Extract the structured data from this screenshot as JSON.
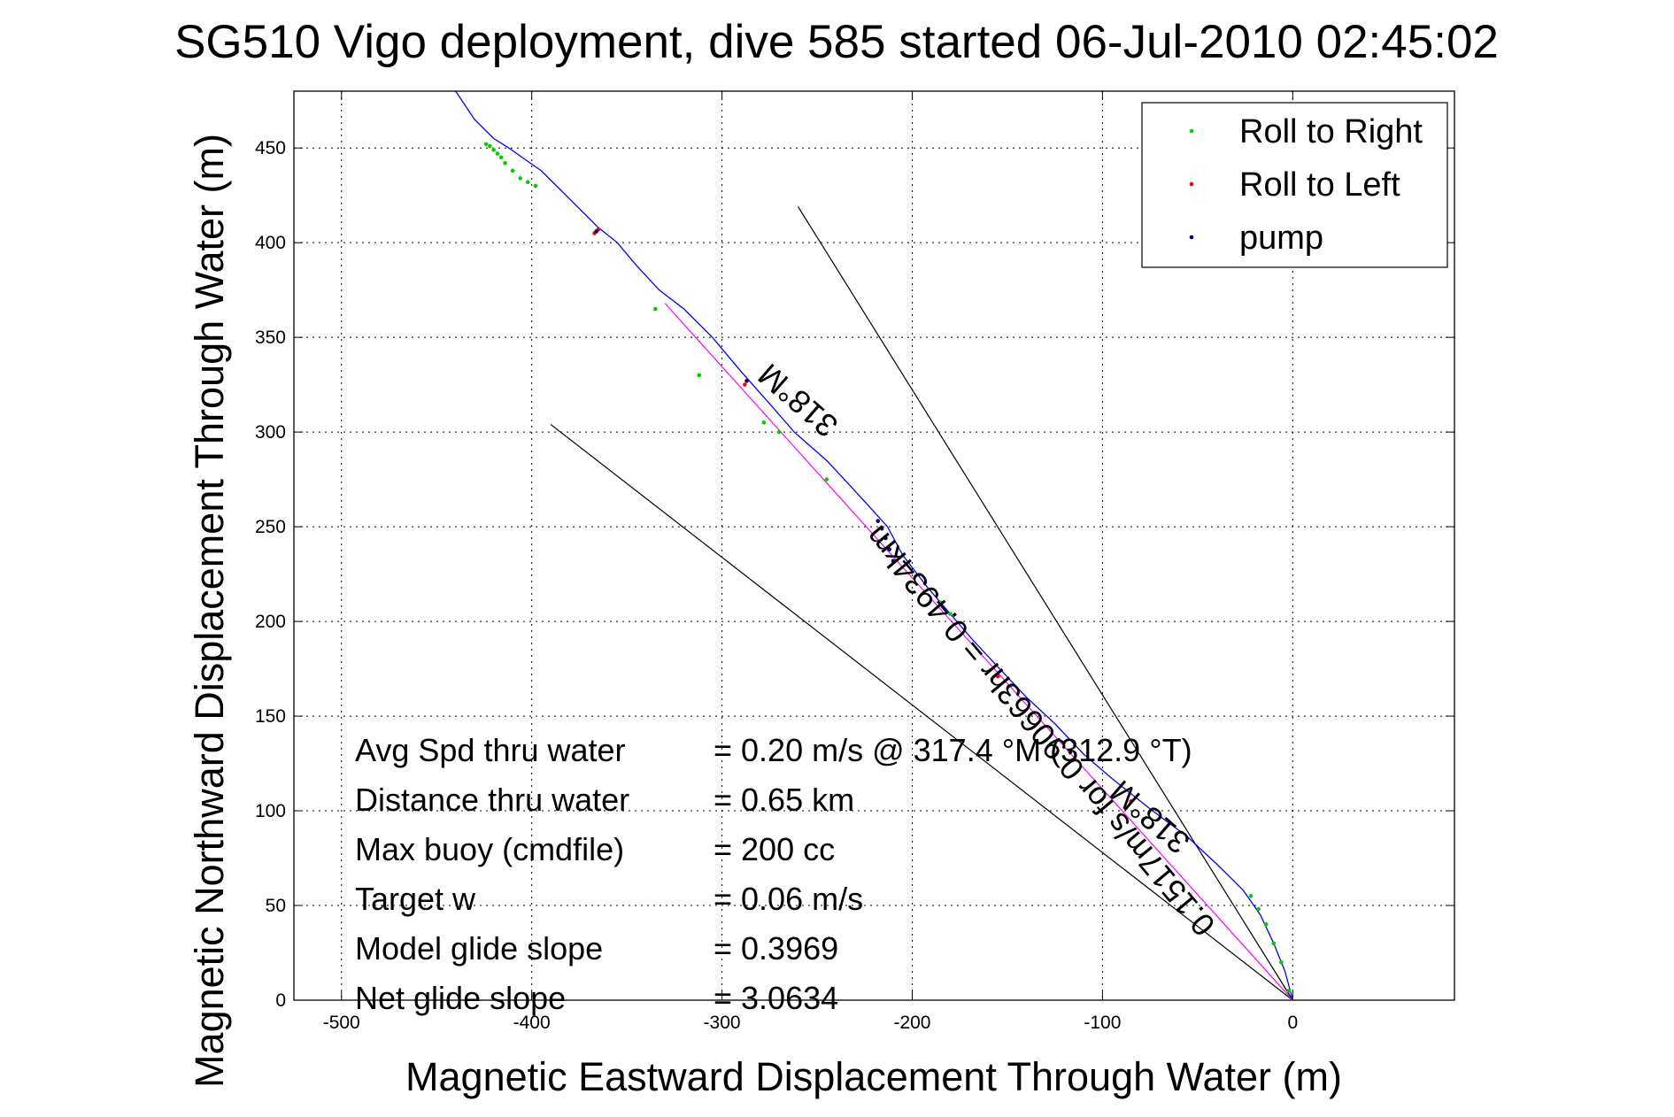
{
  "title": "SG510 Vigo deployment, dive 585 started 06-Jul-2010 02:45:02",
  "chart_data": {
    "type": "scatter",
    "title": "SG510 Vigo deployment, dive 585 started 06-Jul-2010 02:45:02",
    "xlabel": "Magnetic Eastward Displacement Through Water (m)",
    "ylabel": "Magnetic Northward Displacement Through Water (m)",
    "xlim": [
      -525,
      85
    ],
    "ylim": [
      0,
      480
    ],
    "x_ticks": [
      -500,
      -400,
      -300,
      -200,
      -100,
      0
    ],
    "y_ticks": [
      0,
      50,
      100,
      150,
      200,
      250,
      300,
      350,
      400,
      450
    ],
    "grid": true,
    "legend_position": "top-right",
    "legend": [
      "Roll to Right",
      "Roll to Left",
      "pump"
    ],
    "colors": {
      "track": "#0000ff",
      "roll_right": "#00cc00",
      "roll_left": "#ff0000",
      "pump": "#000080",
      "fit_line": "#ff00ff",
      "bounds": "#000000"
    },
    "track": {
      "name": "glider track",
      "x": [
        0,
        -4,
        -10,
        -17,
        -26,
        -38,
        -55,
        -75,
        -95,
        -110,
        -125,
        -140,
        -155,
        -168,
        -180,
        -192,
        -205,
        -213,
        -222,
        -232,
        -245,
        -262,
        -275,
        -290,
        -305,
        -320,
        -333,
        -345,
        -355,
        -365,
        -375,
        -385,
        -395,
        -405,
        -412,
        -420,
        -430,
        -440
      ],
      "y": [
        0,
        15,
        30,
        45,
        58,
        70,
        86,
        101,
        117,
        130,
        146,
        160,
        176,
        190,
        204,
        218,
        235,
        250,
        260,
        271,
        285,
        300,
        315,
        332,
        350,
        365,
        375,
        388,
        400,
        408,
        418,
        428,
        438,
        445,
        450,
        455,
        465,
        480
      ]
    },
    "roll_right": {
      "name": "Roll to Right",
      "x": [
        -2,
        -6,
        -10,
        -14,
        -18,
        -22,
        -180,
        -185,
        -245,
        -270,
        -278,
        -312,
        -335,
        -398,
        -402,
        -406,
        -410,
        -414,
        -416,
        -418,
        -420,
        -422,
        -424
      ],
      "y": [
        5,
        20,
        30,
        40,
        48,
        55,
        204,
        210,
        275,
        300,
        305,
        330,
        365,
        430,
        432,
        434,
        438,
        442,
        445,
        447,
        449,
        451,
        452
      ]
    },
    "roll_left": {
      "name": "Roll to Left",
      "x": [
        -85,
        -155,
        -288,
        -365,
        -367
      ],
      "y": [
        105,
        171,
        325,
        407,
        405
      ]
    },
    "pump": {
      "name": "pump",
      "x": [
        -210,
        -212,
        -214,
        -216,
        -218,
        -287,
        -366
      ],
      "y": [
        232,
        238,
        244,
        249,
        253,
        327,
        406
      ]
    },
    "fit_line": {
      "x": [
        0,
        -330
      ],
      "y": [
        0,
        368
      ]
    },
    "bound_lines": [
      {
        "x": [
          0,
          -260
        ],
        "y": [
          0,
          419
        ]
      },
      {
        "x": [
          0,
          -390
        ],
        "y": [
          0,
          304
        ]
      }
    ],
    "annotations": [
      {
        "text": "318°M",
        "x": -238,
        "y": 305,
        "angle": 41
      },
      {
        "text": "0.1517m/s for 0.90663hr = 0.4934km",
        "x": -40,
        "y": 40,
        "angle": 50
      },
      {
        "text": "318°M",
        "x": -53,
        "y": 85,
        "angle": 41
      }
    ],
    "stats": [
      {
        "label": "Avg Spd thru water",
        "value": "=  0.20 m/s @ 317.4 °M (312.9 °T)"
      },
      {
        "label": "Distance thru water",
        "value": "=  0.65 km"
      },
      {
        "label": "Max buoy (cmdfile)",
        "value": "= 200 cc"
      },
      {
        "label": "Target w",
        "value": "= 0.06 m/s"
      },
      {
        "label": "Model glide slope",
        "value": "= 0.3969"
      },
      {
        "label": "Net glide slope",
        "value": "= 3.0634"
      }
    ]
  }
}
